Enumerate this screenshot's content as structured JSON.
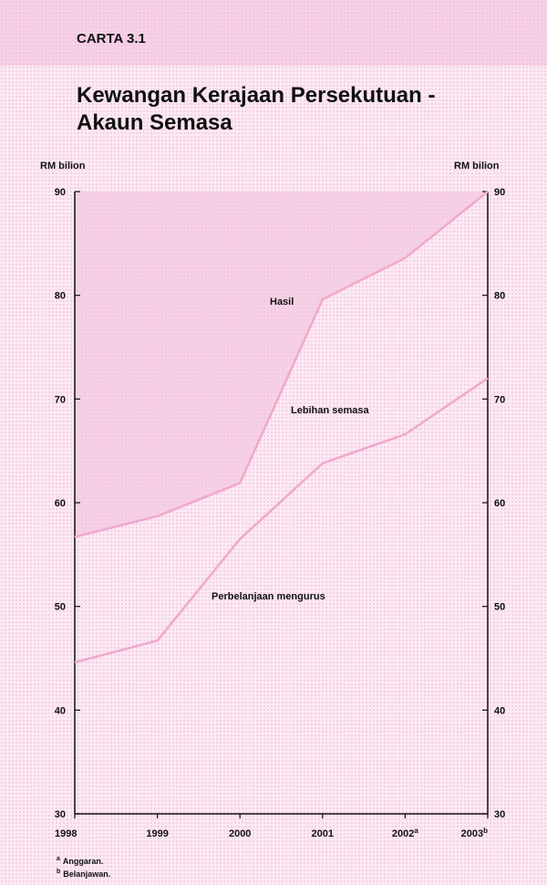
{
  "header": {
    "chart_number": "CARTA 3.1",
    "title_line1": "Kewangan Kerajaan Persekutuan -",
    "title_line2": "Akaun Semasa"
  },
  "axis": {
    "left_unit": "RM bilion",
    "right_unit": "RM bilion"
  },
  "footnotes": [
    {
      "marker": "a",
      "text": "Anggaran."
    },
    {
      "marker": "b",
      "text": "Belanjawan."
    }
  ],
  "colors": {
    "line": "#f0a9cf",
    "shade": "#f3c4dd",
    "axis": "#111111"
  },
  "chart_data": {
    "type": "line",
    "x": [
      "1998",
      "1999",
      "2000",
      "2001",
      "2002",
      "2003"
    ],
    "x_superscripts": [
      "",
      "",
      "",
      "",
      "a",
      "b"
    ],
    "ylim": [
      30,
      90
    ],
    "yticks": [
      30,
      40,
      50,
      60,
      70,
      80,
      90
    ],
    "series": [
      {
        "name": "Hasil",
        "values": [
          56.7,
          58.7,
          61.9,
          79.6,
          83.6,
          90.0
        ]
      },
      {
        "name": "Perbelanjaan mengurus",
        "values": [
          44.6,
          46.7,
          56.5,
          63.8,
          66.6,
          72.0
        ]
      }
    ],
    "shaded_region": {
      "name": "Lebihan semasa",
      "between": [
        "Hasil",
        "Perbelanjaan mengurus"
      ],
      "fill_to": 90
    },
    "annotations": [
      "Hasil",
      "Lebihan semasa",
      "Perbelanjaan mengurus"
    ]
  }
}
